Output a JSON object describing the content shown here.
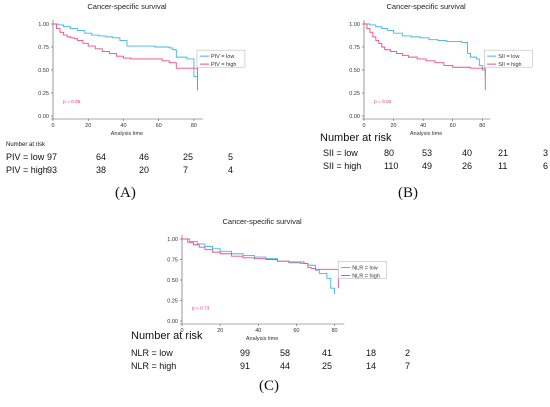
{
  "colors": {
    "low": "#3fb5e8",
    "high": "#ee4c88",
    "pvalue": "#e8336a",
    "axis": "#333333"
  },
  "chart_data": [
    {
      "type": "line",
      "panel_label": "(A)",
      "title": "Cancer-specific survival",
      "xlabel": "Analysis time",
      "ylabel": "",
      "xlim": [
        0,
        84
      ],
      "ylim": [
        0,
        1
      ],
      "x_ticks": [
        "0",
        "20",
        "40",
        "60",
        "80"
      ],
      "y_ticks": [
        "0.00",
        "0.25",
        "0.50",
        "0.75",
        "1.00"
      ],
      "p_value": "p = 0.05",
      "legend_position": "right",
      "series": [
        {
          "name": "PIV = low",
          "color": "#3fb5e8",
          "x": [
            0,
            3,
            6,
            10,
            14,
            18,
            22,
            26,
            30,
            34,
            38,
            42,
            48,
            54,
            58,
            62,
            66,
            68,
            70,
            72,
            76,
            78,
            80,
            82
          ],
          "y": [
            1.0,
            0.99,
            0.97,
            0.95,
            0.93,
            0.9,
            0.88,
            0.87,
            0.86,
            0.85,
            0.82,
            0.76,
            0.76,
            0.76,
            0.75,
            0.75,
            0.74,
            0.72,
            0.64,
            0.64,
            0.62,
            0.62,
            0.43,
            0.43
          ]
        },
        {
          "name": "PIV = high",
          "color": "#ee4c88",
          "x": [
            0,
            2,
            4,
            6,
            8,
            10,
            12,
            14,
            17,
            20,
            24,
            28,
            32,
            36,
            40,
            44,
            50,
            56,
            62,
            66,
            70,
            72,
            80,
            82
          ],
          "y": [
            1.0,
            0.95,
            0.91,
            0.88,
            0.86,
            0.85,
            0.84,
            0.82,
            0.79,
            0.76,
            0.73,
            0.7,
            0.68,
            0.65,
            0.63,
            0.62,
            0.62,
            0.62,
            0.6,
            0.58,
            0.52,
            0.52,
            0.52,
            0.28
          ]
        }
      ],
      "risk_table": {
        "heading": "Number at risk",
        "rows": [
          {
            "label": "PIV = low",
            "values": [
              "97",
              "64",
              "46",
              "25",
              "5"
            ]
          },
          {
            "label": "PIV = high",
            "values": [
              "93",
              "38",
              "20",
              "7",
              "4"
            ]
          }
        ]
      }
    },
    {
      "type": "line",
      "panel_label": "(B)",
      "title": "Cancer-specific survival",
      "xlabel": "Analysis time",
      "ylabel": "",
      "xlim": [
        0,
        84
      ],
      "ylim": [
        0,
        1
      ],
      "x_ticks": [
        "0",
        "20",
        "40",
        "60",
        "80"
      ],
      "y_ticks": [
        "0.00",
        "0.25",
        "0.50",
        "0.75",
        "1.00"
      ],
      "p_value": "p = 0.02",
      "legend_position": "right",
      "series": [
        {
          "name": "SII = low",
          "color": "#3fb5e8",
          "x": [
            0,
            4,
            8,
            12,
            16,
            20,
            26,
            32,
            38,
            44,
            50,
            56,
            62,
            66,
            70,
            72,
            76,
            78,
            80,
            82
          ],
          "y": [
            1.0,
            0.99,
            0.97,
            0.95,
            0.93,
            0.9,
            0.87,
            0.86,
            0.85,
            0.83,
            0.82,
            0.81,
            0.81,
            0.8,
            0.68,
            0.64,
            0.62,
            0.55,
            0.5,
            0.43
          ]
        },
        {
          "name": "SII = high",
          "color": "#ee4c88",
          "x": [
            0,
            2,
            4,
            6,
            8,
            10,
            12,
            14,
            18,
            22,
            26,
            30,
            36,
            42,
            48,
            54,
            60,
            66,
            72,
            80,
            82
          ],
          "y": [
            1.0,
            0.95,
            0.91,
            0.86,
            0.82,
            0.79,
            0.75,
            0.72,
            0.7,
            0.68,
            0.66,
            0.64,
            0.62,
            0.6,
            0.58,
            0.55,
            0.53,
            0.53,
            0.52,
            0.52,
            0.28
          ]
        }
      ],
      "risk_table": {
        "heading": "Number at risk",
        "rows": [
          {
            "label": "SII = low",
            "values": [
              "80",
              "53",
              "40",
              "21",
              "3"
            ]
          },
          {
            "label": "SII = high",
            "values": [
              "110",
              "49",
              "26",
              "11",
              "6"
            ]
          }
        ]
      }
    },
    {
      "type": "line",
      "panel_label": "(C)",
      "title": "Cancer-specific survival",
      "xlabel": "Analysis time",
      "ylabel": "",
      "xlim": [
        0,
        84
      ],
      "ylim": [
        0,
        1
      ],
      "x_ticks": [
        "0",
        "20",
        "40",
        "60",
        "80"
      ],
      "y_ticks": [
        "0.00",
        "0.25",
        "0.50",
        "0.75",
        "1.00"
      ],
      "p_value": "p = 0.73",
      "legend_position": "right",
      "series": [
        {
          "name": "NLR = low",
          "color": "#3fb5e8",
          "x": [
            0,
            4,
            8,
            12,
            16,
            20,
            26,
            32,
            38,
            44,
            50,
            56,
            62,
            66,
            70,
            72,
            76,
            78,
            80
          ],
          "y": [
            1.0,
            0.97,
            0.94,
            0.91,
            0.88,
            0.85,
            0.82,
            0.8,
            0.78,
            0.76,
            0.73,
            0.71,
            0.7,
            0.68,
            0.62,
            0.58,
            0.52,
            0.4,
            0.33
          ]
        },
        {
          "name": "NLR = high",
          "color": "#ee4c88",
          "x": [
            0,
            3,
            6,
            9,
            12,
            16,
            20,
            26,
            32,
            38,
            44,
            50,
            56,
            60,
            64,
            66,
            68,
            70,
            74,
            80,
            82
          ],
          "y": [
            1.0,
            0.96,
            0.93,
            0.9,
            0.87,
            0.84,
            0.82,
            0.79,
            0.77,
            0.76,
            0.75,
            0.73,
            0.72,
            0.72,
            0.7,
            0.65,
            0.64,
            0.63,
            0.63,
            0.63,
            0.4
          ]
        }
      ],
      "risk_table": {
        "heading": "Number at risk",
        "rows": [
          {
            "label": "NLR = low",
            "values": [
              "99",
              "58",
              "41",
              "18",
              "2"
            ]
          },
          {
            "label": "NLR = high",
            "values": [
              "91",
              "44",
              "25",
              "14",
              "7"
            ]
          }
        ]
      }
    }
  ]
}
